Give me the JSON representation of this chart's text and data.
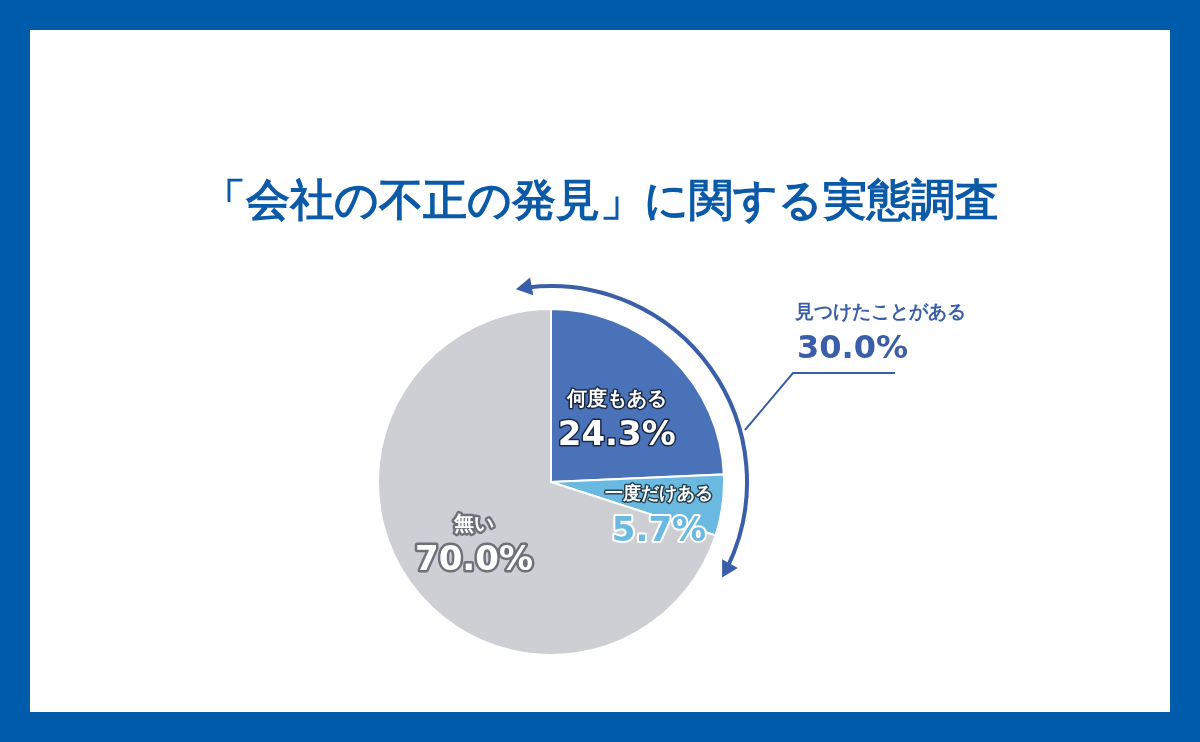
{
  "chart_data": {
    "type": "pie",
    "title": "「会社の不正の発見」に関する実態調査",
    "categories": [
      "何度もある",
      "一度だけある",
      "無い"
    ],
    "values": [
      24.3,
      5.7,
      70.0
    ],
    "colors": [
      "#4a72b8",
      "#6ab9e1",
      "#cdcfd4"
    ],
    "value_labels": [
      "24.3%",
      "5.7%",
      "70.0%"
    ],
    "annotations": [
      "見つけたことがある\n30.0%"
    ]
  }
}
